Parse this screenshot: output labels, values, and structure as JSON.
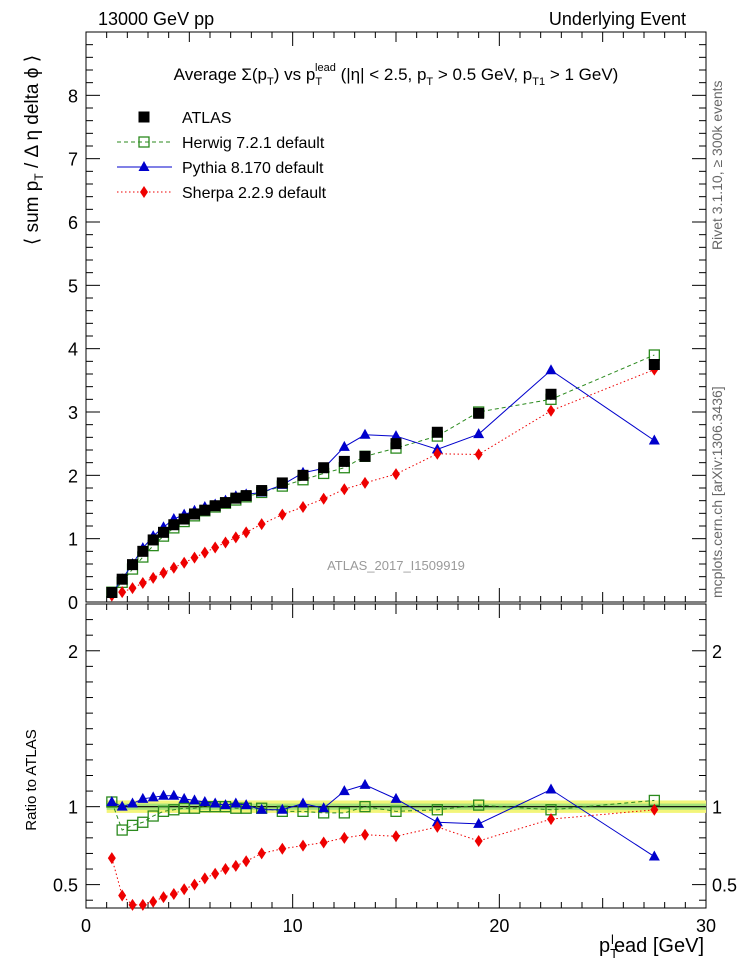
{
  "header": {
    "left": "13000 GeV pp",
    "right": "Underlying Event",
    "side_top": "Rivet 3.1.10, ≥ 300k events",
    "side_bottom": "mcplots.cern.ch [arXiv:1306.3436]",
    "watermark": "ATLAS_2017_I1509919"
  },
  "chart_data": [
    {
      "type": "line",
      "title": "Average Σ(p_T) vs p_T^lead (|η| < 2.5, p_T > 0.5 GeV, p_T1 > 1 GeV)",
      "xlabel": "p_T^lead [GeV]",
      "ylabel": "⟨ sum p_T / Δη deltaϕ ⟩",
      "xlim": [
        0,
        30
      ],
      "ylim": [
        0,
        9
      ],
      "xticks": [
        "0",
        "10",
        "20",
        "30"
      ],
      "yticks": [
        "0",
        "1",
        "2",
        "3",
        "4",
        "5",
        "6",
        "7",
        "8"
      ],
      "legend_position": "top-left",
      "x": [
        1.25,
        1.75,
        2.25,
        2.75,
        3.25,
        3.75,
        4.25,
        4.75,
        5.25,
        5.75,
        6.25,
        6.75,
        7.25,
        7.75,
        8.5,
        9.5,
        10.5,
        11.5,
        12.5,
        13.5,
        15.0,
        17.0,
        19.0,
        22.5,
        27.5
      ],
      "series": [
        {
          "name": "ATLAS",
          "color": "#000000",
          "marker": "filled-square",
          "values": [
            0.15,
            0.36,
            0.59,
            0.8,
            0.98,
            1.1,
            1.22,
            1.31,
            1.39,
            1.45,
            1.52,
            1.57,
            1.64,
            1.68,
            1.76,
            1.88,
            2.0,
            2.12,
            2.22,
            2.3,
            2.5,
            2.68,
            2.98,
            3.28,
            3.75
          ]
        },
        {
          "name": "Herwig 7.2.1 default",
          "color": "#2b8a1e",
          "marker": "open-square",
          "dash": "dashed",
          "values": [
            0.155,
            0.31,
            0.52,
            0.71,
            0.89,
            1.04,
            1.17,
            1.27,
            1.36,
            1.44,
            1.5,
            1.56,
            1.61,
            1.66,
            1.73,
            1.83,
            1.93,
            2.03,
            2.12,
            2.3,
            2.43,
            2.62,
            3.0,
            3.2,
            3.9
          ]
        },
        {
          "name": "Pythia 8.170 default",
          "color": "#0000cc",
          "marker": "triangle",
          "values": [
            0.14,
            0.36,
            0.6,
            0.85,
            1.04,
            1.18,
            1.31,
            1.38,
            1.44,
            1.5,
            1.54,
            1.6,
            1.67,
            1.7,
            1.73,
            1.85,
            2.04,
            2.11,
            2.45,
            2.64,
            2.62,
            2.41,
            2.65,
            3.66,
            2.55
          ]
        },
        {
          "name": "Sherpa 2.2.9 default",
          "color": "#ee0000",
          "marker": "diamond",
          "dash": "dotted",
          "values": [
            0.1,
            0.155,
            0.22,
            0.3,
            0.38,
            0.46,
            0.54,
            0.62,
            0.7,
            0.78,
            0.86,
            0.94,
            1.02,
            1.1,
            1.23,
            1.38,
            1.5,
            1.63,
            1.78,
            1.88,
            2.02,
            2.34,
            2.33,
            3.02,
            3.67
          ]
        }
      ]
    },
    {
      "type": "line",
      "title": "",
      "xlabel": "p_T^lead [GeV]",
      "ylabel": "Ratio to ATLAS",
      "xlim": [
        0,
        30
      ],
      "ylim": [
        0.35,
        2.3
      ],
      "yticks": [
        "0.5",
        "1",
        "2"
      ],
      "series": [
        {
          "name": "Herwig 7.2.1 default",
          "color": "#2b8a1e",
          "values": [
            1.03,
            0.85,
            0.88,
            0.9,
            0.94,
            0.97,
            0.98,
            0.99,
            0.99,
            1.0,
            1.0,
            1.0,
            0.99,
            0.99,
            0.99,
            0.97,
            0.97,
            0.96,
            0.96,
            1.0,
            0.97,
            0.98,
            1.01,
            0.98,
            1.04
          ]
        },
        {
          "name": "Pythia 8.170 default",
          "color": "#0000cc",
          "values": [
            1.03,
            1.0,
            1.02,
            1.05,
            1.06,
            1.07,
            1.07,
            1.05,
            1.04,
            1.03,
            1.02,
            1.01,
            1.02,
            1.01,
            0.98,
            0.98,
            1.02,
            0.99,
            1.1,
            1.14,
            1.05,
            0.9,
            0.89,
            1.11,
            0.68
          ]
        },
        {
          "name": "Sherpa 2.2.9 default",
          "color": "#ee0000",
          "values": [
            0.67,
            0.43,
            0.37,
            0.37,
            0.39,
            0.42,
            0.44,
            0.47,
            0.5,
            0.54,
            0.57,
            0.6,
            0.62,
            0.65,
            0.7,
            0.73,
            0.75,
            0.77,
            0.8,
            0.82,
            0.81,
            0.87,
            0.78,
            0.92,
            0.98
          ]
        }
      ]
    }
  ]
}
